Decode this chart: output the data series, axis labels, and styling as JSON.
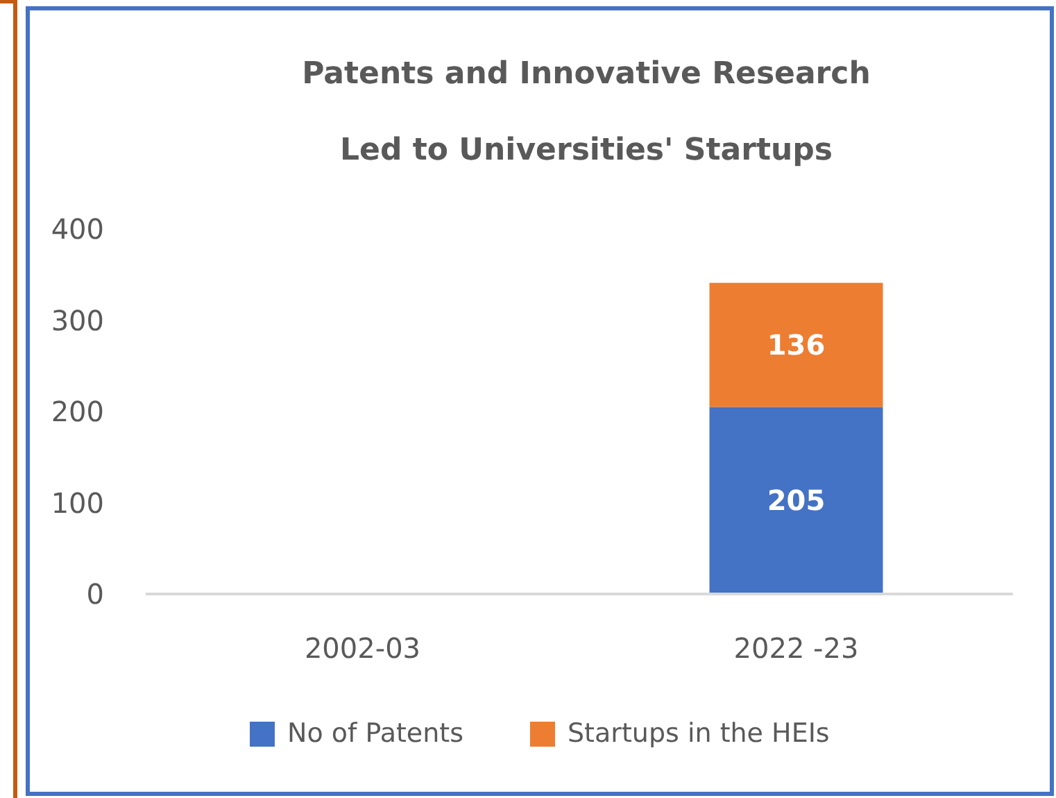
{
  "chart_data": {
    "type": "bar",
    "title": "Patents and Innovative Research\nLed to Universities' Startups",
    "categories": [
      "2002-03",
      "2022 -23"
    ],
    "stacked": true,
    "series": [
      {
        "name": "No of Patents",
        "color": "#4472c4",
        "values": [
          0,
          205
        ],
        "value_labels": [
          null,
          "205"
        ]
      },
      {
        "name": "Startups in the HEIs",
        "color": "#ed7d31",
        "values": [
          0,
          136
        ],
        "value_labels": [
          null,
          "136"
        ]
      }
    ],
    "ylim": [
      0,
      400
    ],
    "yticks": [
      0,
      100,
      200,
      300,
      400
    ],
    "grid": false,
    "legend": "bottom"
  }
}
